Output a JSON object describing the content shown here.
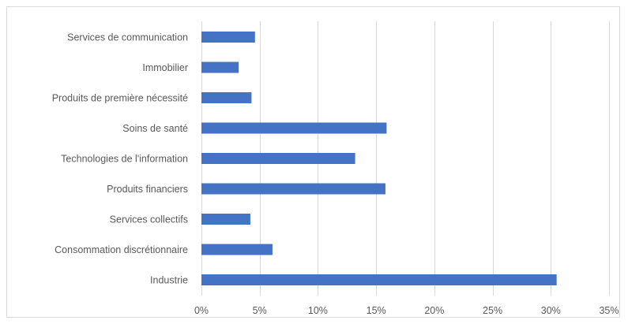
{
  "chart_data": {
    "type": "bar",
    "orientation": "horizontal",
    "categories": [
      "Services de communication",
      "Immobilier",
      "Produits de première nécessité",
      "Soins de santé",
      "Technologies de l'information",
      "Produits financiers",
      "Services collectifs",
      "Consommation discrétionnaire",
      "Industrie"
    ],
    "values": [
      4.6,
      3.2,
      4.3,
      15.9,
      13.2,
      15.8,
      4.2,
      6.1,
      30.5
    ],
    "xlim": [
      0,
      35
    ],
    "xticks": [
      0,
      5,
      10,
      15,
      20,
      25,
      30,
      35
    ],
    "tick_labels": [
      "0%",
      "5%",
      "10%",
      "15%",
      "20%",
      "25%",
      "30%",
      "35%"
    ],
    "bar_color": "#4472c4",
    "grid": true,
    "title": "",
    "xlabel": "",
    "ylabel": ""
  }
}
